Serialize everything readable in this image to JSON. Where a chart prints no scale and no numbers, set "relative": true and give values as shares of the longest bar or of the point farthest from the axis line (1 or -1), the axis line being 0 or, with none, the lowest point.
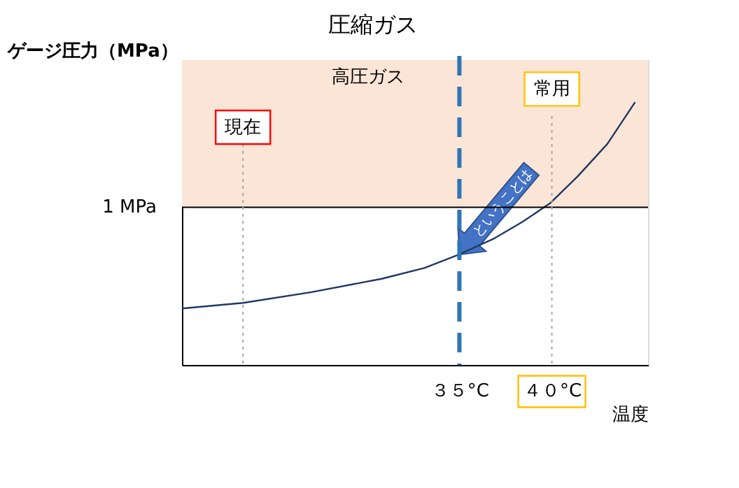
{
  "chart_data": {
    "type": "line",
    "title": "圧縮ガス",
    "ylabel": "ゲージ圧力（MPa）",
    "xlabel": "温度",
    "relative": true,
    "xlim": [
      20,
      45.2
    ],
    "xticks": [
      {
        "value": 35,
        "label": "３５°C"
      },
      {
        "value": 40,
        "label": "４０°C"
      }
    ],
    "x": [
      20,
      23.3,
      27.0,
      30.8,
      33.1,
      35,
      36.9,
      38.4,
      39.9,
      41.4,
      43.0,
      44.5
    ],
    "series": [
      {
        "color": "#203864",
        "values": [
          0.215,
          0.236,
          0.277,
          0.328,
          0.369,
          0.421,
          0.482,
          0.544,
          0.615,
          0.718,
          0.841,
          1
        ]
      }
    ],
    "bands": [
      {
        "axis": "y",
        "from": 0.6,
        "to": 1.16,
        "label": "高圧ガス",
        "color": "#fbe5d6"
      }
    ],
    "ref_lines": [
      {
        "axis": "y",
        "value": 0.6,
        "label": "1 MPa",
        "color": "#000000",
        "line_style": "solid"
      },
      {
        "axis": "x",
        "value": 35,
        "color": "#2e75b6",
        "line_style": "dashed"
      },
      {
        "axis": "x",
        "value": 40,
        "color": "#a6a6a6",
        "line_style": "dotted"
      },
      {
        "axis": "x",
        "value": 23.3,
        "label": "現在",
        "color": "#a6a6a6",
        "line_style": "dotted"
      }
    ],
    "annotations": [
      {
        "text": "常用",
        "x": 40,
        "y": 1.05
      },
      {
        "text": "ということは",
        "x": 35,
        "y": 0.42
      }
    ],
    "grid": false,
    "line_style": "solid",
    "marker": "none"
  }
}
